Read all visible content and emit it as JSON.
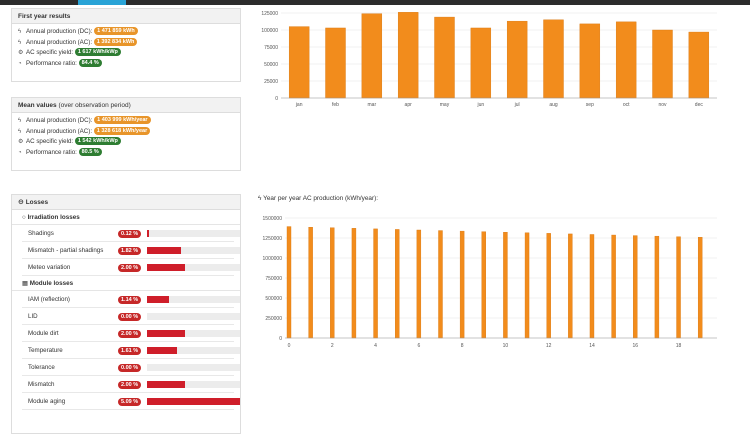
{
  "first_year": {
    "title": "First year results",
    "rows": [
      {
        "icon": "bolt-icon",
        "label": "Annual production (DC):",
        "value": "1 471 859 kWh",
        "color": "orange"
      },
      {
        "icon": "bolt-icon",
        "label": "Annual production (AC):",
        "value": "1 392 834 kWh",
        "color": "orange"
      },
      {
        "icon": "cog-icon",
        "label": "AC specific yield:",
        "value": "1 617 kWh/kWp",
        "color": "green"
      },
      {
        "icon": "gauge-icon",
        "label": "Performance ratio:",
        "value": "84.4 %",
        "color": "green"
      }
    ]
  },
  "mean_values": {
    "title": "Mean values",
    "subtitle": "(over observation period)",
    "rows": [
      {
        "icon": "bolt-icon",
        "label": "Annual production (DC):",
        "value": "1 403 999 kWh/year",
        "color": "orange"
      },
      {
        "icon": "bolt-icon",
        "label": "Annual production (AC):",
        "value": "1 328 618 kWh/year",
        "color": "orange"
      },
      {
        "icon": "cog-icon",
        "label": "AC specific yield:",
        "value": "1 542 kWh/kWp",
        "color": "green"
      },
      {
        "icon": "gauge-icon",
        "label": "Performance ratio:",
        "value": "80.5 %",
        "color": "green"
      }
    ]
  },
  "losses": {
    "title": "Losses",
    "irradiation_title": "Irradiation losses",
    "module_title": "Module losses",
    "irradiation": [
      {
        "label": "Shadings",
        "value": "0.12 %",
        "fraction": 0.024
      },
      {
        "label": "Mismatch - partial shadings",
        "value": "1.82 %",
        "fraction": 0.36
      },
      {
        "label": "Meteo variation",
        "value": "2.00 %",
        "fraction": 0.4
      }
    ],
    "module": [
      {
        "label": "IAM (reflection)",
        "value": "1.14 %",
        "fraction": 0.23
      },
      {
        "label": "LID",
        "value": "0.00 %",
        "fraction": 0
      },
      {
        "label": "Module dirt",
        "value": "2.00 %",
        "fraction": 0.4
      },
      {
        "label": "Temperature",
        "value": "1.61 %",
        "fraction": 0.32
      },
      {
        "label": "Tolerance",
        "value": "0.00 %",
        "fraction": 0
      },
      {
        "label": "Mismatch",
        "value": "2.00 %",
        "fraction": 0.4
      },
      {
        "label": "Module aging",
        "value": "5.09 %",
        "fraction": 1.0
      }
    ]
  },
  "yearly_chart_title": "Year per year AC production (kWh/year):",
  "colors": {
    "bar": "#f28c1c",
    "bar_edge": "#d9770f",
    "loss": "#cf1e2a"
  },
  "chart_data": [
    {
      "type": "bar",
      "categories": [
        "jan",
        "feb",
        "mar",
        "apr",
        "may",
        "jun",
        "jul",
        "aug",
        "sep",
        "oct",
        "nov",
        "dec"
      ],
      "values": [
        105000,
        103000,
        124000,
        126000,
        119000,
        103000,
        113000,
        115000,
        109000,
        112000,
        100000,
        97000
      ],
      "ylim": [
        0,
        125000
      ],
      "yticks": [
        0,
        25000,
        50000,
        75000,
        100000,
        125000
      ],
      "grid": true
    },
    {
      "type": "bar",
      "title": "Year per year AC production (kWh/year):",
      "x": [
        0,
        1,
        2,
        3,
        4,
        5,
        6,
        7,
        8,
        9,
        10,
        11,
        12,
        13,
        14,
        15,
        16,
        17,
        18,
        19
      ],
      "values": [
        1392834,
        1385000,
        1378000,
        1371000,
        1364000,
        1357000,
        1350000,
        1343000,
        1336000,
        1329000,
        1322000,
        1315000,
        1308000,
        1301000,
        1294000,
        1287000,
        1280000,
        1273000,
        1266000,
        1259000
      ],
      "xticks": [
        0,
        2,
        4,
        6,
        8,
        10,
        12,
        14,
        16,
        18
      ],
      "ylim": [
        0,
        1500000
      ],
      "yticks": [
        0,
        250000,
        500000,
        750000,
        1000000,
        1250000,
        1500000
      ],
      "grid": true
    }
  ]
}
